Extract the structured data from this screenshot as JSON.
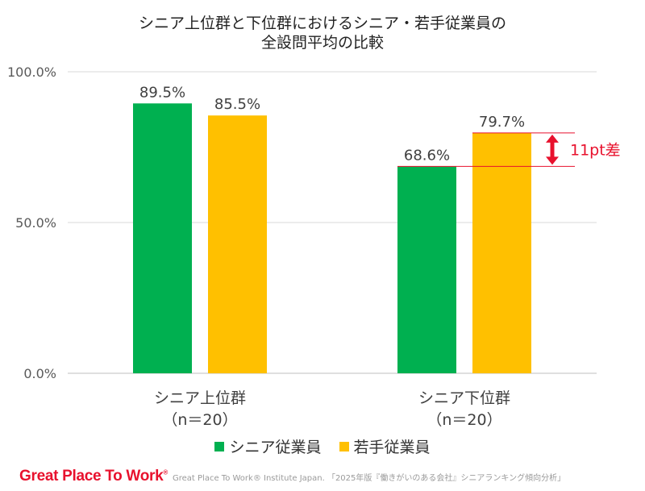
{
  "header": {
    "title_line1": "シニア上位群と下位群におけるシニア・若手従業員の",
    "title_line2": "全設問平均の比較"
  },
  "chart_data": {
    "type": "bar",
    "categories": [
      {
        "name": "シニア上位群",
        "sub": "（n＝20）"
      },
      {
        "name": "シニア下位群",
        "sub": "（n＝20）"
      }
    ],
    "series": [
      {
        "name": "シニア従業員",
        "color": "#00b050",
        "values": [
          89.5,
          68.6
        ],
        "labels": [
          "89.5%",
          "68.6%"
        ]
      },
      {
        "name": "若手従業員",
        "color": "#ffc000",
        "values": [
          85.5,
          79.7
        ],
        "labels": [
          "85.5%",
          "79.7%"
        ]
      }
    ],
    "ylim": [
      0,
      100
    ],
    "yticks": [
      {
        "value": 0,
        "label": "0.0%"
      },
      {
        "value": 50,
        "label": "50.0%"
      },
      {
        "value": 100,
        "label": "100.0%"
      }
    ],
    "grid": true,
    "legend": "bottom",
    "annotation": {
      "text": "11pt差",
      "category_index": 1,
      "from": 68.6,
      "to": 79.7,
      "color": "#e8112d"
    }
  },
  "footer": {
    "brand": "Great Place To Work",
    "brand_mark": "®",
    "credit": "Great Place To Work® Institute Japan. 「2025年版『働きがいのある会社』シニアランキング傾向分析」"
  }
}
